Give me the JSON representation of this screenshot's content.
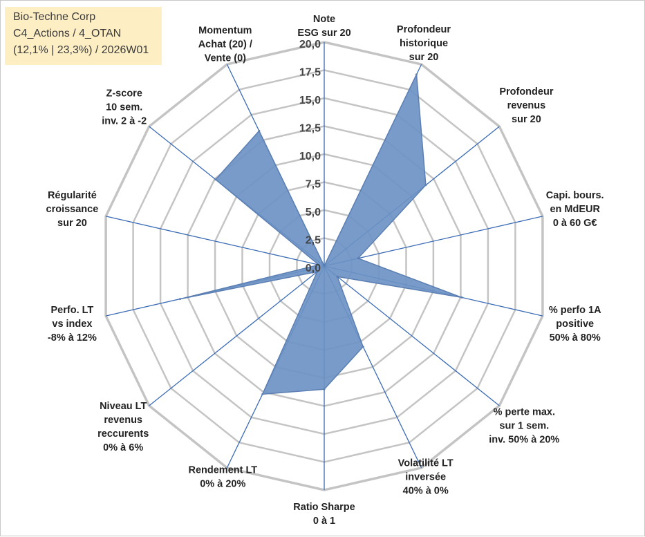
{
  "info": {
    "company": "Bio-Techne Corp",
    "portfolio": "C4_Actions / 4_OTAN",
    "stats": "(12,1% | 23,3%) / 2026W01"
  },
  "colors": {
    "grid": "#c4c4c4",
    "spoke": "#3a6bb5",
    "fill": "#6c92c4",
    "stroke": "#5b7fb3"
  },
  "chart_data": {
    "type": "radar",
    "title": "",
    "rlim": [
      0,
      20
    ],
    "ticks": [
      "0,0",
      "2,5",
      "5,0",
      "7,5",
      "10,0",
      "12,5",
      "15,0",
      "17,5",
      "20,0"
    ],
    "tick_values": [
      0,
      2.5,
      5,
      7.5,
      10,
      12.5,
      15,
      17.5,
      20
    ],
    "grid_rings": [
      2.5,
      5,
      7.5,
      10,
      12.5,
      15,
      17.5,
      20
    ],
    "categories": [
      {
        "lines": [
          "Note",
          "ESG sur 20"
        ]
      },
      {
        "lines": [
          "Profondeur",
          "historique",
          "sur 20"
        ]
      },
      {
        "lines": [
          "Profondeur",
          "revenus",
          "sur 20"
        ]
      },
      {
        "lines": [
          "Capi. bours.",
          "en MdEUR",
          "0 à 60 G€"
        ]
      },
      {
        "lines": [
          "% perfo 1A",
          "positive",
          "50% à 80%"
        ]
      },
      {
        "lines": [
          "% perte max.",
          "sur 1 sem.",
          "inv. 50% à 20%"
        ]
      },
      {
        "lines": [
          "Volatilité LT",
          "inversée",
          "40% à 0%"
        ]
      },
      {
        "lines": [
          "Ratio Sharpe",
          "0 à 1"
        ]
      },
      {
        "lines": [
          "Rendement LT",
          "0% à 20%"
        ]
      },
      {
        "lines": [
          "Niveau LT",
          "revenus",
          "reccurents",
          "0% à 6%"
        ]
      },
      {
        "lines": [
          "Perfo. LT",
          "vs index",
          "-8% à 12%"
        ]
      },
      {
        "lines": [
          "Régularité",
          "croissance",
          "sur 20"
        ]
      },
      {
        "lines": [
          "Z-score",
          "10 sem.",
          "inv. 2 à -2"
        ]
      },
      {
        "lines": [
          "Momentum",
          "Achat (20) /",
          "Vente (0)"
        ]
      }
    ],
    "series": [
      {
        "name": "Bio-Techne Corp",
        "values": [
          0.0,
          19.0,
          11.6,
          3.1,
          12.6,
          1.5,
          8.0,
          11.0,
          12.7,
          0.8,
          13.2,
          0.5,
          12.4,
          13.4
        ]
      }
    ]
  }
}
